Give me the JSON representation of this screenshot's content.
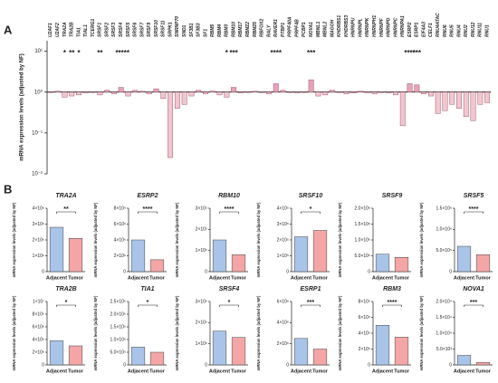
{
  "panel_a_label": "A",
  "panel_b_label": "B",
  "chart_data": [
    {
      "type": "bar",
      "log_scale": true,
      "ylabel": "mRNA expression levels (adjusted by NF)",
      "color_up": "#e6a3b8",
      "color_down": "#f2c6cf",
      "ylim": [
        0.01,
        18
      ],
      "yticks": [
        {
          "value": 10,
          "label": "10¹"
        },
        {
          "value": 1,
          "label": "10⁰"
        },
        {
          "value": 0.1,
          "label": "10⁻¹"
        },
        {
          "value": 0.01,
          "label": "10⁻²"
        }
      ],
      "categories": [
        "U2AF1",
        "U2AF2",
        "TRA2A",
        "TRA2B",
        "TIA1",
        "TIAL1",
        "TCERG1",
        "SRSF1",
        "SRSF2",
        "SRSF3",
        "SRSF4",
        "SRSF5",
        "SRSF6",
        "SRSF7",
        "SRSF9",
        "SRSF10",
        "SRSF11",
        "SRPK1",
        "SNRNP70",
        "SND1",
        "SF3B1",
        "SF3B3",
        "SF1",
        "RBM5",
        "RBM4",
        "RBM3",
        "RBM10",
        "RBM17",
        "RBM22",
        "RBM25",
        "RBFOX2",
        "RALY",
        "RAVER1",
        "PTBP1",
        "PRPF40A",
        "PRPF4B",
        "PCBP1",
        "NOVA1",
        "MBNL1",
        "MBNL2",
        "MAGOH",
        "KHDRBS1",
        "KHDRBS3",
        "HNRNPU",
        "HNRNPL",
        "HNRNPK",
        "HNRNPH1",
        "HNRNPF",
        "HNRNPD",
        "HNRNPC",
        "HNRNPA1",
        "ESRP2",
        "ESRP1",
        "EIF4A3",
        "CELF1",
        "RNU4ATAC",
        "RNU6",
        "RNU5",
        "RNU4",
        "RNU2",
        "RNU12",
        "RNU11",
        "RNU1"
      ],
      "values": [
        1.0,
        1.05,
        0.75,
        0.8,
        0.85,
        0.95,
        1.0,
        0.85,
        1.1,
        0.9,
        1.3,
        0.8,
        1.1,
        1.05,
        0.9,
        1.2,
        0.7,
        0.025,
        0.4,
        0.5,
        0.8,
        1.1,
        0.9,
        1.05,
        0.85,
        0.75,
        1.3,
        0.95,
        1.0,
        1.05,
        1.0,
        0.9,
        1.6,
        1.1,
        1.0,
        0.95,
        1.0,
        2.0,
        0.8,
        0.85,
        1.1,
        1.0,
        0.9,
        0.95,
        1.05,
        1.0,
        0.9,
        1.0,
        0.95,
        0.85,
        0.15,
        1.6,
        1.5,
        0.9,
        0.8,
        0.3,
        0.35,
        0.5,
        0.4,
        0.25,
        0.2,
        0.5,
        0.55
      ],
      "significance": [
        null,
        null,
        "*",
        "**",
        "*",
        null,
        null,
        "**",
        null,
        null,
        "****",
        "*",
        null,
        null,
        null,
        null,
        null,
        null,
        null,
        null,
        null,
        null,
        null,
        null,
        null,
        "*",
        "***",
        null,
        null,
        null,
        null,
        null,
        "****",
        null,
        null,
        null,
        null,
        "***",
        null,
        null,
        null,
        null,
        null,
        null,
        null,
        null,
        null,
        null,
        null,
        null,
        null,
        "****",
        "***",
        null,
        null,
        null,
        null,
        null,
        null,
        null,
        null,
        null,
        null
      ]
    },
    {
      "type": "bar",
      "title": "TRA2A",
      "ylabel": "mRNA expression levels (adjusted by NF)",
      "categories": [
        "Adjacent",
        "Tumor"
      ],
      "colors": [
        "#a9c4e8",
        "#f4a6a6"
      ],
      "values": [
        2800000,
        2100000
      ],
      "significance": "**",
      "ylim": [
        0,
        4000000
      ],
      "yticks": [
        0,
        {
          "value": 1000000,
          "label": "1×10⁶"
        },
        {
          "value": 2000000,
          "label": "2×10⁶"
        },
        {
          "value": 3000000,
          "label": "3×10⁶"
        },
        {
          "value": 4000000,
          "label": "4×10⁶"
        }
      ]
    },
    {
      "type": "bar",
      "title": "ESRP2",
      "ylabel": "mRNA expression levels (adjusted by NF)",
      "categories": [
        "Adjacent",
        "Tumor"
      ],
      "colors": [
        "#a9c4e8",
        "#f4a6a6"
      ],
      "values": [
        4000000,
        1500000
      ],
      "significance": "****",
      "ylim": [
        0,
        8000000
      ],
      "yticks": [
        0,
        {
          "value": 2000000,
          "label": "2×10⁶"
        },
        {
          "value": 4000000,
          "label": "4×10⁶"
        },
        {
          "value": 6000000,
          "label": "6×10⁶"
        },
        {
          "value": 8000000,
          "label": "8×10⁶"
        }
      ]
    },
    {
      "type": "bar",
      "title": "RBM10",
      "ylabel": "mRNA expression levels (adjusted by NF)",
      "categories": [
        "Adjacent",
        "Tumor"
      ],
      "colors": [
        "#a9c4e8",
        "#f4a6a6"
      ],
      "values": [
        150000,
        80000
      ],
      "significance": "****",
      "ylim": [
        0,
        300000
      ],
      "yticks": [
        0,
        {
          "value": 100000,
          "label": "1×10⁵"
        },
        {
          "value": 200000,
          "label": "2×10⁵"
        },
        {
          "value": 300000,
          "label": "3×10⁵"
        }
      ]
    },
    {
      "type": "bar",
      "title": "SRSF10",
      "ylabel": "mRNA expression levels (adjusted by NF)",
      "categories": [
        "Adjacent",
        "Tumor"
      ],
      "colors": [
        "#a9c4e8",
        "#f4a6a6"
      ],
      "values": [
        220000,
        260000
      ],
      "significance": "*",
      "ylim": [
        0,
        400000
      ],
      "yticks": [
        0,
        {
          "value": 100000,
          "label": "1×10⁵"
        },
        {
          "value": 200000,
          "label": "2×10⁵"
        },
        {
          "value": 300000,
          "label": "3×10⁵"
        },
        {
          "value": 400000,
          "label": "4×10⁵"
        }
      ]
    },
    {
      "type": "bar",
      "title": "SRSF9",
      "ylabel": "mRNA expression levels (adjusted by NF)",
      "categories": [
        "Adjacent",
        "Tumor"
      ],
      "colors": [
        "#a9c4e8",
        "#f4a6a6"
      ],
      "values": [
        550000,
        450000
      ],
      "ylim": [
        0,
        2000000
      ],
      "yticks": [
        0,
        {
          "value": 500000,
          "label": "5.0×10⁵"
        },
        {
          "value": 1000000,
          "label": "1.0×10⁶"
        },
        {
          "value": 1500000,
          "label": "1.5×10⁶"
        },
        {
          "value": 2000000,
          "label": "2.0×10⁶"
        }
      ]
    },
    {
      "type": "bar",
      "title": "SRSF5",
      "ylabel": "mRNA expression levels (adjusted by NF)",
      "categories": [
        "Adjacent",
        "Tumor"
      ],
      "colors": [
        "#a9c4e8",
        "#f4a6a6"
      ],
      "values": [
        600000,
        400000
      ],
      "significance": "****",
      "ylim": [
        0,
        1500000
      ],
      "yticks": [
        0,
        {
          "value": 500000,
          "label": "5.0×10⁵"
        },
        {
          "value": 1000000,
          "label": "1.0×10⁶"
        },
        {
          "value": 1500000,
          "label": "1.5×10⁶"
        }
      ]
    },
    {
      "type": "bar",
      "title": "TRA2B",
      "ylabel": "mRNA expression levels (adjusted by NF)",
      "categories": [
        "Adjacent",
        "Tumor"
      ],
      "colors": [
        "#a9c4e8",
        "#f4a6a6"
      ],
      "values": [
        3800000,
        3000000
      ],
      "significance": "*",
      "ylim": [
        0,
        10000000
      ],
      "yticks": [
        0,
        {
          "value": 2000000,
          "label": "2×10⁶"
        },
        {
          "value": 4000000,
          "label": "4×10⁶"
        },
        {
          "value": 6000000,
          "label": "6×10⁶"
        },
        {
          "value": 8000000,
          "label": "8×10⁶"
        },
        {
          "value": 10000000,
          "label": "1×10⁷"
        }
      ]
    },
    {
      "type": "bar",
      "title": "TIA1",
      "ylabel": "mRNA expression levels (adjusted by NF)",
      "categories": [
        "Adjacent",
        "Tumor"
      ],
      "colors": [
        "#a9c4e8",
        "#f4a6a6"
      ],
      "values": [
        700000,
        500000
      ],
      "significance": "*",
      "ylim": [
        0,
        2500000
      ],
      "yticks": [
        0,
        {
          "value": 500000,
          "label": "5.0×10⁵"
        },
        {
          "value": 1000000,
          "label": "1.0×10⁶"
        },
        {
          "value": 1500000,
          "label": "1.5×10⁶"
        },
        {
          "value": 2000000,
          "label": "2.0×10⁶"
        },
        {
          "value": 2500000,
          "label": "2.5×10⁶"
        }
      ]
    },
    {
      "type": "bar",
      "title": "SRSF4",
      "ylabel": "mRNA expression levels (adjusted by NF)",
      "categories": [
        "Adjacent",
        "Tumor"
      ],
      "colors": [
        "#a9c4e8",
        "#f4a6a6"
      ],
      "values": [
        160000,
        130000
      ],
      "significance": "*",
      "ylim": [
        0,
        300000
      ],
      "yticks": [
        0,
        {
          "value": 100000,
          "label": "1×10⁵"
        },
        {
          "value": 200000,
          "label": "2×10⁵"
        },
        {
          "value": 300000,
          "label": "3×10⁵"
        }
      ]
    },
    {
      "type": "bar",
      "title": "ESRP1",
      "ylabel": "mRNA expression levels (adjusted by NF)",
      "categories": [
        "Adjacent",
        "Tumor"
      ],
      "colors": [
        "#a9c4e8",
        "#f4a6a6"
      ],
      "values": [
        2500000,
        1500000
      ],
      "significance": "***",
      "ylim": [
        0,
        6000000
      ],
      "yticks": [
        0,
        {
          "value": 2000000,
          "label": "2×10⁶"
        },
        {
          "value": 4000000,
          "label": "4×10⁶"
        },
        {
          "value": 6000000,
          "label": "6×10⁶"
        }
      ]
    },
    {
      "type": "bar",
      "title": "RBM3",
      "ylabel": "mRNA expression levels (adjusted by NF)",
      "categories": [
        "Adjacent",
        "Tumor"
      ],
      "colors": [
        "#a9c4e8",
        "#f4a6a6"
      ],
      "values": [
        500000,
        350000
      ],
      "significance": "****",
      "ylim": [
        0,
        800000
      ],
      "yticks": [
        0,
        {
          "value": 200000,
          "label": "2×10⁵"
        },
        {
          "value": 400000,
          "label": "4×10⁵"
        },
        {
          "value": 600000,
          "label": "6×10⁵"
        },
        {
          "value": 800000,
          "label": "8×10⁵"
        }
      ]
    },
    {
      "type": "bar",
      "title": "NOVA1",
      "ylabel": "mRNA expression levels (adjusted by NF)",
      "categories": [
        "Adjacent",
        "Tumor"
      ],
      "colors": [
        "#a9c4e8",
        "#f4a6a6"
      ],
      "values": [
        3000,
        800
      ],
      "significance": "***",
      "ylim": [
        0,
        20000
      ],
      "yticks": [
        0,
        {
          "value": 5000,
          "label": "5.0×10³"
        },
        {
          "value": 10000,
          "label": "1.0×10⁴"
        },
        {
          "value": 15000,
          "label": "1.5×10⁴"
        },
        {
          "value": 20000,
          "label": "2.0×10⁴"
        }
      ]
    }
  ]
}
